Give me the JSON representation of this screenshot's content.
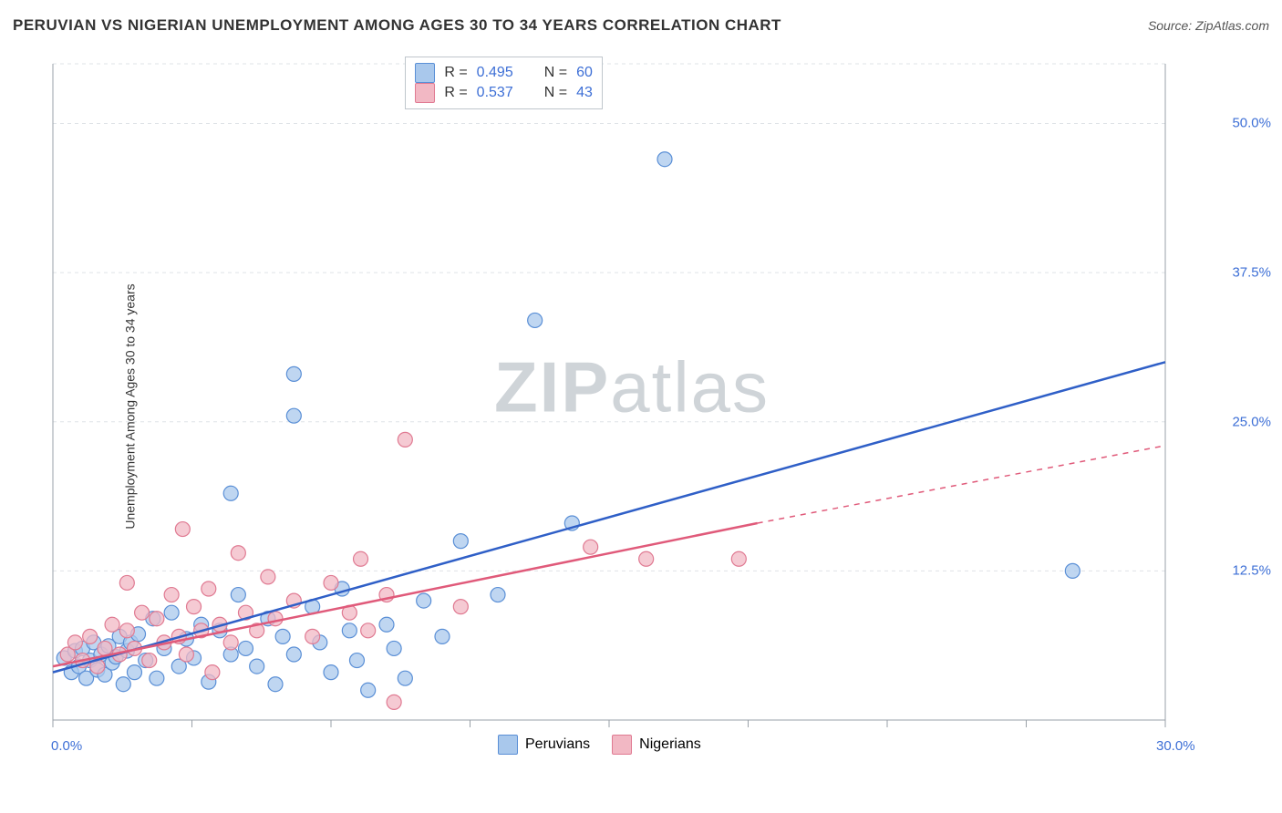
{
  "title": "PERUVIAN VS NIGERIAN UNEMPLOYMENT AMONG AGES 30 TO 34 YEARS CORRELATION CHART",
  "source": "Source: ZipAtlas.com",
  "ylabel": "Unemployment Among Ages 30 to 34 years",
  "watermark_a": "ZIP",
  "watermark_b": "atlas",
  "chart": {
    "type": "scatter-with-regression",
    "background_color": "#ffffff",
    "grid_color": "#dfe3e7",
    "axis_color": "#9aa1a8",
    "text_color": "#333333",
    "value_color": "#3d6fd6",
    "xlim": [
      0,
      30
    ],
    "ylim": [
      0,
      55
    ],
    "x_ticks": [
      0,
      3.75,
      7.5,
      11.25,
      15,
      18.75,
      22.5,
      26.25,
      30
    ],
    "y_gridlines": [
      12.5,
      25,
      37.5,
      50,
      55
    ],
    "y_tick_labels": [
      "12.5%",
      "25.0%",
      "37.5%",
      "50.0%"
    ],
    "y_tick_values": [
      12.5,
      25,
      37.5,
      50
    ],
    "x_min_label": "0.0%",
    "x_max_label": "30.0%",
    "marker_radius": 8,
    "marker_stroke_width": 1.2,
    "series": [
      {
        "name": "Peruvians",
        "fill": "#a9c8ec",
        "stroke": "#5a8fd6",
        "line_color": "#2f5fc7",
        "line_width": 2.5,
        "R": "0.495",
        "N": "60",
        "reg_start": [
          0,
          4.0
        ],
        "reg_end_solid": [
          30,
          30.0
        ],
        "reg_end_dashed": null,
        "points": [
          [
            0.3,
            5.2
          ],
          [
            0.5,
            4.0
          ],
          [
            0.6,
            5.8
          ],
          [
            0.7,
            4.5
          ],
          [
            0.8,
            6.0
          ],
          [
            0.9,
            3.5
          ],
          [
            1.0,
            5.0
          ],
          [
            1.1,
            6.5
          ],
          [
            1.2,
            4.2
          ],
          [
            1.3,
            5.5
          ],
          [
            1.4,
            3.8
          ],
          [
            1.5,
            6.2
          ],
          [
            1.6,
            4.8
          ],
          [
            1.7,
            5.3
          ],
          [
            1.8,
            7.0
          ],
          [
            1.9,
            3.0
          ],
          [
            2.0,
            5.8
          ],
          [
            2.1,
            6.5
          ],
          [
            2.2,
            4.0
          ],
          [
            2.3,
            7.2
          ],
          [
            2.5,
            5.0
          ],
          [
            2.7,
            8.5
          ],
          [
            2.8,
            3.5
          ],
          [
            3.0,
            6.0
          ],
          [
            3.2,
            9.0
          ],
          [
            3.4,
            4.5
          ],
          [
            3.6,
            6.8
          ],
          [
            3.8,
            5.2
          ],
          [
            4.0,
            8.0
          ],
          [
            4.2,
            3.2
          ],
          [
            4.5,
            7.5
          ],
          [
            4.8,
            5.5
          ],
          [
            5.0,
            10.5
          ],
          [
            5.2,
            6.0
          ],
          [
            5.5,
            4.5
          ],
          [
            5.8,
            8.5
          ],
          [
            6.0,
            3.0
          ],
          [
            6.2,
            7.0
          ],
          [
            6.5,
            5.5
          ],
          [
            7.0,
            9.5
          ],
          [
            7.2,
            6.5
          ],
          [
            7.5,
            4.0
          ],
          [
            7.8,
            11.0
          ],
          [
            8.0,
            7.5
          ],
          [
            8.2,
            5.0
          ],
          [
            8.5,
            2.5
          ],
          [
            9.0,
            8.0
          ],
          [
            9.2,
            6.0
          ],
          [
            9.5,
            3.5
          ],
          [
            10.0,
            10.0
          ],
          [
            10.5,
            7.0
          ],
          [
            11.0,
            15.0
          ],
          [
            12.0,
            10.5
          ],
          [
            13.0,
            33.5
          ],
          [
            14.0,
            16.5
          ],
          [
            16.5,
            47.0
          ],
          [
            4.8,
            19.0
          ],
          [
            6.5,
            29.0
          ],
          [
            6.5,
            25.5
          ],
          [
            27.5,
            12.5
          ]
        ]
      },
      {
        "name": "Nigerians",
        "fill": "#f2b8c4",
        "stroke": "#e07a92",
        "line_color": "#e05a7a",
        "line_width": 2.5,
        "R": "0.537",
        "N": "43",
        "reg_start": [
          0,
          4.5
        ],
        "reg_end_solid": [
          19,
          16.5
        ],
        "reg_end_dashed": [
          30,
          23.0
        ],
        "points": [
          [
            0.4,
            5.5
          ],
          [
            0.6,
            6.5
          ],
          [
            0.8,
            5.0
          ],
          [
            1.0,
            7.0
          ],
          [
            1.2,
            4.5
          ],
          [
            1.4,
            6.0
          ],
          [
            1.6,
            8.0
          ],
          [
            1.8,
            5.5
          ],
          [
            2.0,
            7.5
          ],
          [
            2.2,
            6.0
          ],
          [
            2.4,
            9.0
          ],
          [
            2.6,
            5.0
          ],
          [
            2.8,
            8.5
          ],
          [
            3.0,
            6.5
          ],
          [
            3.2,
            10.5
          ],
          [
            3.4,
            7.0
          ],
          [
            3.6,
            5.5
          ],
          [
            3.8,
            9.5
          ],
          [
            4.0,
            7.5
          ],
          [
            4.2,
            11.0
          ],
          [
            4.5,
            8.0
          ],
          [
            4.8,
            6.5
          ],
          [
            5.0,
            14.0
          ],
          [
            5.2,
            9.0
          ],
          [
            5.5,
            7.5
          ],
          [
            5.8,
            12.0
          ],
          [
            6.0,
            8.5
          ],
          [
            6.5,
            10.0
          ],
          [
            7.0,
            7.0
          ],
          [
            7.5,
            11.5
          ],
          [
            8.0,
            9.0
          ],
          [
            8.3,
            13.5
          ],
          [
            8.5,
            7.5
          ],
          [
            9.0,
            10.5
          ],
          [
            9.2,
            1.5
          ],
          [
            9.5,
            23.5
          ],
          [
            11.0,
            9.5
          ],
          [
            14.5,
            14.5
          ],
          [
            16.0,
            13.5
          ],
          [
            18.5,
            13.5
          ],
          [
            3.5,
            16.0
          ],
          [
            2.0,
            11.5
          ],
          [
            4.3,
            4.0
          ]
        ]
      }
    ]
  },
  "legend_top": {
    "R_label": "R =",
    "N_label": "N ="
  },
  "legend_bottom": {
    "items": [
      "Peruvians",
      "Nigerians"
    ]
  }
}
